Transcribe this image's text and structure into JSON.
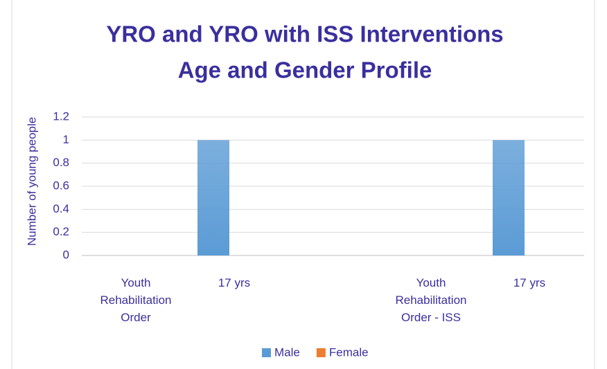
{
  "chart_data": {
    "type": "bar",
    "title": [
      "YRO and YRO with ISS Interventions",
      "Age and Gender Profile"
    ],
    "y_label": "Number of young people",
    "categories": [
      "Youth Rehabilitation Order",
      "17 yrs",
      null,
      "Youth Rehabilitation Order - ISS",
      "17 yrs"
    ],
    "series": [
      {
        "name": "Male",
        "color": "#5b9bd5",
        "values": [
          null,
          1,
          null,
          null,
          1
        ]
      },
      {
        "name": "Female",
        "color": "#ed7d31",
        "values": [
          null,
          null,
          null,
          null,
          null
        ]
      }
    ],
    "ylim": [
      0,
      1.2
    ],
    "yticks": [
      0,
      0.2,
      0.4,
      0.6,
      0.8,
      1,
      1.2
    ],
    "grid": true,
    "legend": "bottom"
  }
}
